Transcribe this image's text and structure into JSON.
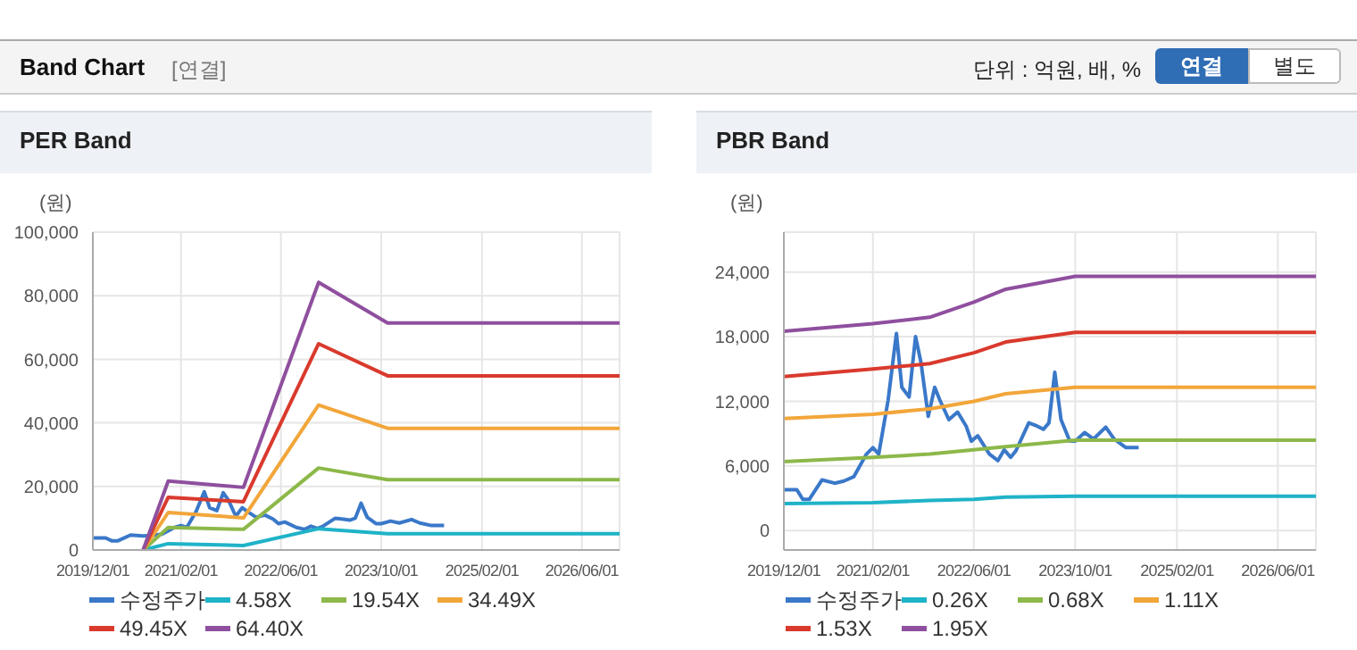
{
  "chart_data": [
    {
      "type": "line",
      "title": "PER Band",
      "ylabel": "(원)",
      "annotations": [
        "Band Chart",
        "[연결]",
        "단위 : 억원, 배, %",
        "연결",
        "별도"
      ],
      "xlim": [
        "2019-12-01",
        "2026-12-01"
      ],
      "xticks": [
        {
          "value": "2019-12-01",
          "label": "2019/12/01"
        },
        {
          "value": "2021-02-01",
          "label": "2021/02/01"
        },
        {
          "value": "2022-06-01",
          "label": "2022/06/01"
        },
        {
          "value": "2023-10-01",
          "label": "2023/10/01"
        },
        {
          "value": "2025-02-01",
          "label": "2025/02/01"
        },
        {
          "value": "2026-06-01",
          "label": "2026/06/01"
        }
      ],
      "ylim": [
        0,
        100000
      ],
      "yticks": [
        0,
        {
          "value": 20000,
          "label": "20,000"
        },
        {
          "value": 40000,
          "label": "40,000"
        },
        {
          "value": 60000,
          "label": "60,000"
        },
        {
          "value": 80000,
          "label": "80,000"
        },
        {
          "value": 100000,
          "label": "100,000"
        }
      ],
      "grid": true,
      "legend": "bottom",
      "marker": "none",
      "line_style": "solid",
      "series": [
        {
          "name": "수정주가",
          "color": "#3a78c9",
          "x": [
            "2019-12",
            "2020-02",
            "2020-03",
            "2020-04",
            "2020-06",
            "2020-08",
            "2020-09-15",
            "2020-11",
            "2021-01",
            "2021-02",
            "2021-03",
            "2021-04-15",
            "2021-05-25",
            "2021-06-20",
            "2021-07-25",
            "2021-08-25",
            "2021-09-20",
            "2021-10-25",
            "2021-11-25",
            "2021-12-20",
            "2022-02",
            "2022-03-15",
            "2022-04-25",
            "2022-05-20",
            "2022-06-20",
            "2022-08-15",
            "2022-09-25",
            "2022-10-25",
            "2022-11-25",
            "2022-12-20",
            "2023-02-20",
            "2023-04",
            "2023-05",
            "2023-05-28",
            "2023-06-25",
            "2023-07-25",
            "2023-09-05",
            "2023-10",
            "2023-11-15",
            "2023-12-28",
            "2024-02-25",
            "2024-04-05",
            "2024-06",
            "2024-08"
          ],
          "values": [
            3800,
            3800,
            2900,
            2900,
            4700,
            4400,
            4600,
            5000,
            7100,
            7700,
            7100,
            12100,
            18300,
            13300,
            12400,
            18000,
            15600,
            10600,
            13300,
            12100,
            10300,
            11000,
            9700,
            8300,
            8800,
            7100,
            6500,
            7500,
            6800,
            7400,
            10000,
            9700,
            9400,
            10000,
            14700,
            10300,
            8300,
            8300,
            9100,
            8500,
            9600,
            8500,
            7700,
            7700
          ]
        },
        {
          "name": "4.58X",
          "color": "#1fb3c8",
          "x": [
            "2020-08",
            "2020-12",
            "2021-12",
            "2022-12",
            "2023-11",
            "2026-12"
          ],
          "values": [
            0,
            2000,
            1400,
            6700,
            5100,
            5100
          ]
        },
        {
          "name": "19.54X",
          "color": "#8db84a",
          "x": [
            "2020-08",
            "2020-12",
            "2021-12",
            "2022-12",
            "2023-11",
            "2026-12"
          ],
          "values": [
            0,
            7100,
            6500,
            25800,
            22100,
            22100
          ]
        },
        {
          "name": "34.49X",
          "color": "#f2a63a",
          "x": [
            "2020-08",
            "2020-12",
            "2021-12",
            "2022-12",
            "2023-11",
            "2026-12"
          ],
          "values": [
            0,
            11800,
            10100,
            45600,
            38300,
            38300
          ]
        },
        {
          "name": "49.45X",
          "color": "#d93a2d",
          "x": [
            "2020-08",
            "2020-12",
            "2021-12",
            "2022-12",
            "2023-11",
            "2026-12"
          ],
          "values": [
            0,
            16600,
            15200,
            64900,
            54800,
            54800
          ]
        },
        {
          "name": "64.40X",
          "color": "#8f4f9e",
          "x": [
            "2020-08",
            "2020-12",
            "2021-12",
            "2022-12",
            "2023-11",
            "2026-12"
          ],
          "values": [
            0,
            21700,
            19700,
            84200,
            71400,
            71400
          ]
        }
      ]
    },
    {
      "type": "line",
      "title": "PBR Band",
      "ylabel": "(원)",
      "xlim": [
        "2019-12-01",
        "2026-12-01"
      ],
      "xticks": [
        {
          "value": "2019-12-01",
          "label": "2019/12/01"
        },
        {
          "value": "2021-02-01",
          "label": "2021/02/01"
        },
        {
          "value": "2022-06-01",
          "label": "2022/06/01"
        },
        {
          "value": "2023-10-01",
          "label": "2023/10/01"
        },
        {
          "value": "2025-02-01",
          "label": "2025/02/01"
        },
        {
          "value": "2026-06-01",
          "label": "2026/06/01"
        }
      ],
      "ylim": [
        -1800,
        27700
      ],
      "yticks": [
        0,
        {
          "value": 6000,
          "label": "6,000"
        },
        {
          "value": 12000,
          "label": "12,000"
        },
        {
          "value": 18000,
          "label": "18,000"
        },
        {
          "value": 24000,
          "label": "24,000"
        }
      ],
      "grid": true,
      "legend": "bottom",
      "marker": "none",
      "line_style": "solid",
      "series": [
        {
          "name": "수정주가",
          "color": "#3a78c9",
          "x": [
            "2019-12",
            "2020-02",
            "2020-03",
            "2020-04",
            "2020-06",
            "2020-08",
            "2020-09-15",
            "2020-11",
            "2021-01",
            "2021-02",
            "2021-03",
            "2021-04-15",
            "2021-05-25",
            "2021-06-20",
            "2021-07-25",
            "2021-08-25",
            "2021-09-20",
            "2021-10-25",
            "2021-11-25",
            "2021-12-20",
            "2022-02",
            "2022-03-15",
            "2022-04-25",
            "2022-05-20",
            "2022-06-20",
            "2022-08-15",
            "2022-09-25",
            "2022-10-25",
            "2022-11-25",
            "2022-12-20",
            "2023-02-20",
            "2023-04",
            "2023-05",
            "2023-05-28",
            "2023-06-25",
            "2023-07-25",
            "2023-09-05",
            "2023-10",
            "2023-11-15",
            "2023-12-28",
            "2024-02-25",
            "2024-04-05",
            "2024-06",
            "2024-08"
          ],
          "values": [
            3800,
            3800,
            2900,
            2900,
            4700,
            4400,
            4600,
            5000,
            7100,
            7700,
            7100,
            12100,
            18300,
            13300,
            12400,
            18000,
            15600,
            10600,
            13300,
            12100,
            10300,
            11000,
            9700,
            8300,
            8800,
            7100,
            6500,
            7500,
            6800,
            7400,
            10000,
            9700,
            9400,
            10000,
            14700,
            10300,
            8300,
            8300,
            9100,
            8500,
            9600,
            8500,
            7700,
            7700
          ]
        },
        {
          "name": "0.26X",
          "color": "#1fb3c8",
          "x": [
            "2019-12",
            "2021-02",
            "2021-11",
            "2022-06",
            "2022-11",
            "2023-10",
            "2026-12"
          ],
          "values": [
            2500,
            2600,
            2800,
            2900,
            3100,
            3200,
            3200
          ]
        },
        {
          "name": "0.68X",
          "color": "#8db84a",
          "x": [
            "2019-12",
            "2021-02",
            "2021-11",
            "2022-06",
            "2022-11",
            "2023-10",
            "2026-12"
          ],
          "values": [
            6400,
            6800,
            7100,
            7500,
            7800,
            8400,
            8400
          ]
        },
        {
          "name": "1.11X",
          "color": "#f2a63a",
          "x": [
            "2019-12",
            "2021-02",
            "2021-11",
            "2022-06",
            "2022-11",
            "2023-10",
            "2026-12"
          ],
          "values": [
            10400,
            10800,
            11300,
            12000,
            12700,
            13300,
            13300
          ]
        },
        {
          "name": "1.53X",
          "color": "#d93a2d",
          "x": [
            "2019-12",
            "2021-02",
            "2021-11",
            "2022-06",
            "2022-11",
            "2023-10",
            "2026-12"
          ],
          "values": [
            14300,
            15000,
            15500,
            16500,
            17500,
            18400,
            18400
          ]
        },
        {
          "name": "1.95X",
          "color": "#8f4f9e",
          "x": [
            "2019-12",
            "2021-02",
            "2021-11",
            "2022-06",
            "2022-11",
            "2023-10",
            "2026-12"
          ],
          "values": [
            18500,
            19200,
            19800,
            21200,
            22400,
            23600,
            23600
          ]
        }
      ]
    }
  ]
}
